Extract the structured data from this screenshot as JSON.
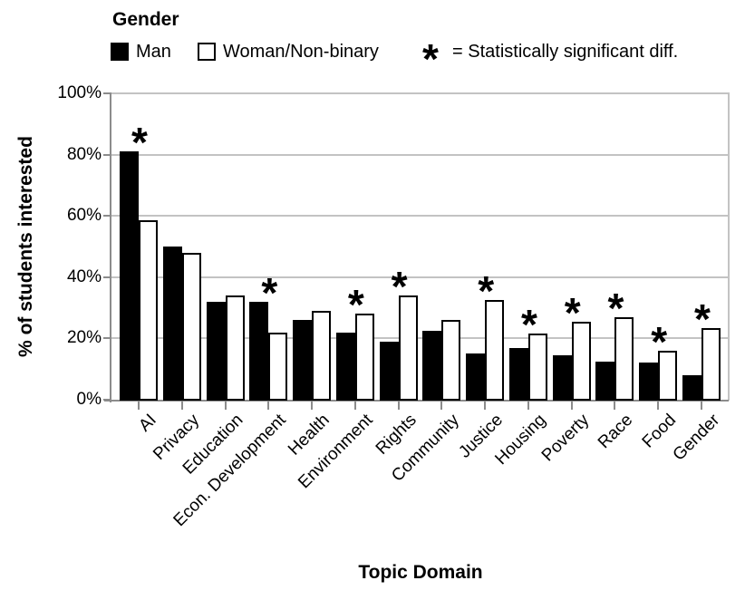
{
  "legend": {
    "title": "Gender",
    "series": [
      {
        "label": "Man",
        "swatch": "black"
      },
      {
        "label": "Woman/Non-binary",
        "swatch": "white-outlined"
      }
    ],
    "note_symbol": "*",
    "note_text": "= Statistically significant diff."
  },
  "chart_data": {
    "type": "bar",
    "title": "",
    "categories": [
      "AI",
      "Privacy",
      "Education",
      "Econ. Development",
      "Health",
      "Environment",
      "Rights",
      "Community",
      "Justice",
      "Housing",
      "Poverty",
      "Race",
      "Food",
      "Gender"
    ],
    "series": [
      {
        "name": "Man",
        "fill": "#000000",
        "values": [
          81,
          50,
          32,
          32,
          26,
          22,
          19,
          22.5,
          15,
          17,
          14.5,
          12.5,
          12,
          8
        ]
      },
      {
        "name": "Woman/Non-binary",
        "fill": "#ffffff",
        "values": [
          58.5,
          48,
          34,
          22,
          29,
          28,
          34,
          26,
          32.5,
          21.5,
          25.5,
          27,
          16,
          23.5
        ]
      }
    ],
    "significant": [
      true,
      false,
      false,
      true,
      false,
      true,
      true,
      false,
      true,
      true,
      true,
      true,
      true,
      true
    ],
    "significance_marker": "*",
    "xlabel": "Topic Domain",
    "ylabel": "% of students interested",
    "ylim": [
      0,
      100
    ],
    "yticks": [
      0,
      20,
      40,
      60,
      80,
      100
    ],
    "ytick_suffix": "%",
    "grid": true,
    "legend_position": "top-left"
  },
  "colors": {
    "bar_man": "#000000",
    "bar_woman": "#ffffff",
    "bar_border": "#000000",
    "gridline": "#c3c3c3",
    "axis": "#8c8c8c",
    "text": "#000000",
    "background": "#ffffff"
  }
}
